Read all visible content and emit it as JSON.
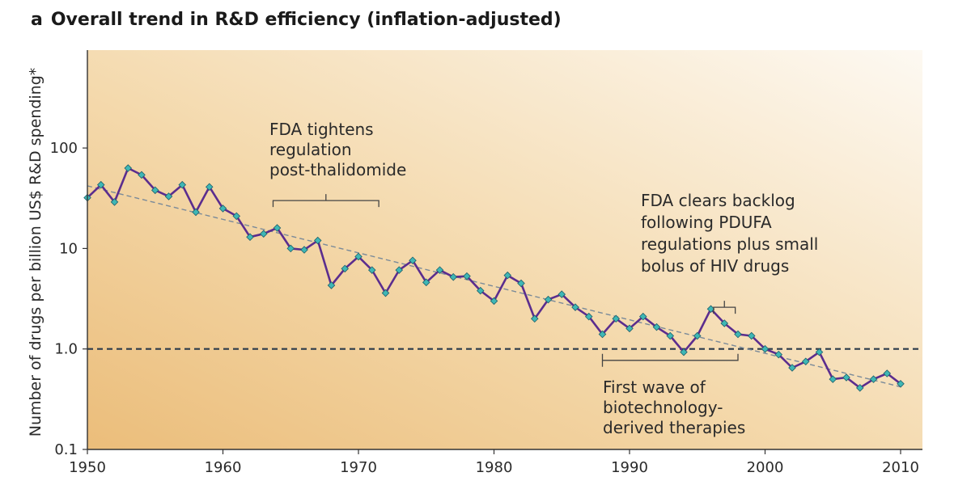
{
  "figure": {
    "panel_letter": "a",
    "title": "Overall trend in R&D efficiency (inflation-adjusted)"
  },
  "chart_data": {
    "type": "line",
    "ylabel": "Number of drugs per billion US$ R&D spending*",
    "xlabel": "",
    "x_scale": "linear",
    "y_scale": "log",
    "xlim": [
      1950,
      2012
    ],
    "ylim": [
      0.1,
      1000
    ],
    "x_ticks": [
      1950,
      1960,
      1970,
      1980,
      1990,
      2000,
      2010
    ],
    "x_tick_labels": [
      "1950",
      "1960",
      "1970",
      "1980",
      "1990",
      "2000",
      "2010"
    ],
    "y_ticks": [
      0.1,
      1,
      10,
      100
    ],
    "y_tick_labels": [
      "0.1",
      "1.0",
      "10",
      "100"
    ],
    "grid": false,
    "series": [
      {
        "color": "#5b2d8e",
        "marker_color": "#3fb7b5",
        "points": [
          [
            1950,
            32
          ],
          [
            1951,
            43
          ],
          [
            1952,
            29
          ],
          [
            1953,
            63
          ],
          [
            1954,
            54
          ],
          [
            1955,
            38
          ],
          [
            1956,
            33
          ],
          [
            1957,
            43
          ],
          [
            1958,
            23
          ],
          [
            1959,
            41
          ],
          [
            1960,
            25
          ],
          [
            1961,
            21
          ],
          [
            1962,
            13
          ],
          [
            1963,
            14
          ],
          [
            1964,
            16
          ],
          [
            1965,
            10
          ],
          [
            1966,
            9.7
          ],
          [
            1967,
            12
          ],
          [
            1968,
            4.3
          ],
          [
            1969,
            6.3
          ],
          [
            1970,
            8.3
          ],
          [
            1971,
            6.1
          ],
          [
            1972,
            3.6
          ],
          [
            1973,
            6.1
          ],
          [
            1974,
            7.6
          ],
          [
            1975,
            4.6
          ],
          [
            1976,
            6.1
          ],
          [
            1977,
            5.2
          ],
          [
            1978,
            5.3
          ],
          [
            1979,
            3.8
          ],
          [
            1980,
            3.0
          ],
          [
            1981,
            5.4
          ],
          [
            1982,
            4.5
          ],
          [
            1983,
            2.0
          ],
          [
            1984,
            3.1
          ],
          [
            1985,
            3.5
          ],
          [
            1986,
            2.6
          ],
          [
            1987,
            2.1
          ],
          [
            1988,
            1.4
          ],
          [
            1989,
            2.0
          ],
          [
            1990,
            1.6
          ],
          [
            1991,
            2.1
          ],
          [
            1992,
            1.65
          ],
          [
            1993,
            1.35
          ],
          [
            1994,
            0.93
          ],
          [
            1995,
            1.35
          ],
          [
            1996,
            2.5
          ],
          [
            1997,
            1.8
          ],
          [
            1998,
            1.4
          ],
          [
            1999,
            1.35
          ],
          [
            2000,
            1.0
          ],
          [
            2001,
            0.88
          ],
          [
            2002,
            0.65
          ],
          [
            2003,
            0.75
          ],
          [
            2004,
            0.93
          ],
          [
            2005,
            0.5
          ],
          [
            2006,
            0.52
          ],
          [
            2007,
            0.41
          ],
          [
            2008,
            0.5
          ],
          [
            2009,
            0.57
          ],
          [
            2010,
            0.45
          ]
        ]
      }
    ],
    "trend_line": {
      "from": [
        1950,
        42
      ],
      "to": [
        2010,
        0.42
      ],
      "style": "dashed",
      "color": "#7a8a99"
    },
    "reference_line": {
      "y": 1.0,
      "style": "dashed",
      "color": "#2b3a4a"
    },
    "annotations": [
      {
        "lines": [
          "FDA tightens",
          "regulation",
          "post-thalidomide"
        ],
        "bracket": {
          "x_from": 1963.7,
          "x_to": 1971.5,
          "y": 30,
          "orientation": "down",
          "tick_x": 1967.6
        }
      },
      {
        "lines": [
          "FDA clears backlog",
          "following PDUFA",
          "regulations plus small",
          "bolus of HIV drugs"
        ],
        "bracket": {
          "x_from": 1996.2,
          "x_to": 1997.8,
          "y": 2.6,
          "orientation": "down",
          "tick_x": 1997
        }
      },
      {
        "lines": [
          "First wave of",
          "biotechnology-",
          "derived therapies"
        ],
        "bracket": {
          "x_from": 1988.0,
          "x_to": 1998.0,
          "y": 0.77,
          "orientation": "up",
          "tick_x": 1988
        }
      }
    ]
  }
}
